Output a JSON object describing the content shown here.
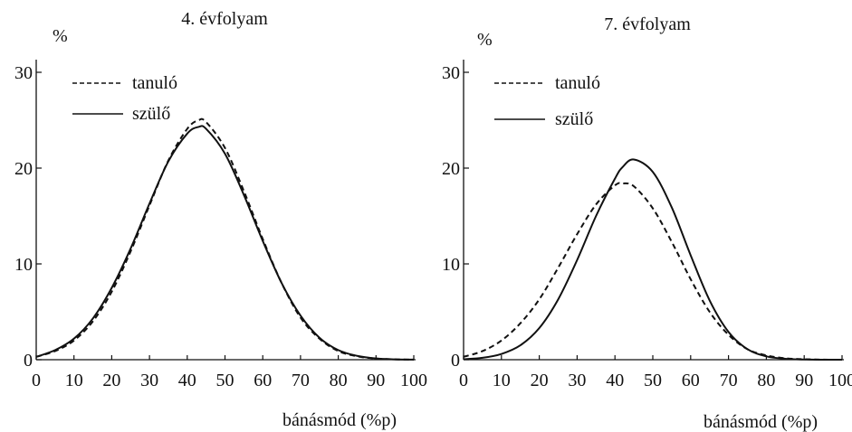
{
  "chart_data": [
    {
      "type": "line",
      "title": "4. évfolyam",
      "ylabel": "%",
      "xlabel": "bánásmód (%p)",
      "xlim": [
        0,
        100
      ],
      "ylim": [
        0,
        30
      ],
      "xticks": [
        "0",
        "10",
        "20",
        "30",
        "40",
        "50",
        "60",
        "70",
        "80",
        "90",
        "100"
      ],
      "yticks": [
        "0",
        "10",
        "20",
        "30"
      ],
      "legend_position": "top-left",
      "grid": false,
      "x": [
        0,
        5,
        10,
        15,
        20,
        25,
        30,
        35,
        40,
        43,
        45,
        50,
        55,
        60,
        65,
        70,
        75,
        80,
        85,
        90,
        95,
        100
      ],
      "series": [
        {
          "name": "tanuló",
          "style": "dashed",
          "values": [
            0.3,
            0.9,
            2.0,
            4.0,
            7.1,
            11.3,
            16.1,
            20.8,
            24.1,
            25.0,
            24.8,
            22.1,
            17.6,
            12.6,
            8.0,
            4.4,
            2.2,
            0.9,
            0.35,
            0.12,
            0.04,
            0.01
          ]
        },
        {
          "name": "szülő",
          "style": "solid",
          "values": [
            0.3,
            1.0,
            2.2,
            4.3,
            7.5,
            11.6,
            16.3,
            20.7,
            23.6,
            24.3,
            24.1,
            21.5,
            17.2,
            12.4,
            8.0,
            4.6,
            2.3,
            1.0,
            0.4,
            0.13,
            0.04,
            0.01
          ]
        }
      ]
    },
    {
      "type": "line",
      "title": "7. évfolyam",
      "ylabel": "%",
      "xlabel": "bánásmód (%p)",
      "xlim": [
        0,
        100
      ],
      "ylim": [
        0,
        30
      ],
      "xticks": [
        "0",
        "10",
        "20",
        "30",
        "40",
        "50",
        "60",
        "70",
        "80",
        "90",
        "100"
      ],
      "yticks": [
        "0",
        "10",
        "20",
        "30"
      ],
      "legend_position": "top-left",
      "grid": false,
      "x": [
        0,
        5,
        10,
        15,
        20,
        25,
        30,
        35,
        40,
        42,
        45,
        50,
        55,
        60,
        65,
        70,
        75,
        80,
        85,
        90,
        95,
        100
      ],
      "series": [
        {
          "name": "tanuló",
          "style": "dashed",
          "values": [
            0.3,
            0.9,
            2.0,
            3.8,
            6.3,
            9.6,
            13.1,
            16.2,
            18.2,
            18.4,
            18.1,
            15.8,
            12.3,
            8.4,
            5.0,
            2.6,
            1.1,
            0.45,
            0.15,
            0.05,
            0.01,
            0.0
          ]
        },
        {
          "name": "szülő",
          "style": "solid",
          "values": [
            0.05,
            0.2,
            0.6,
            1.5,
            3.3,
            6.3,
            10.4,
            15.0,
            18.9,
            20.1,
            20.9,
            19.6,
            15.9,
            10.9,
            6.2,
            2.9,
            1.1,
            0.35,
            0.1,
            0.02,
            0.0,
            0.0
          ]
        }
      ]
    }
  ]
}
